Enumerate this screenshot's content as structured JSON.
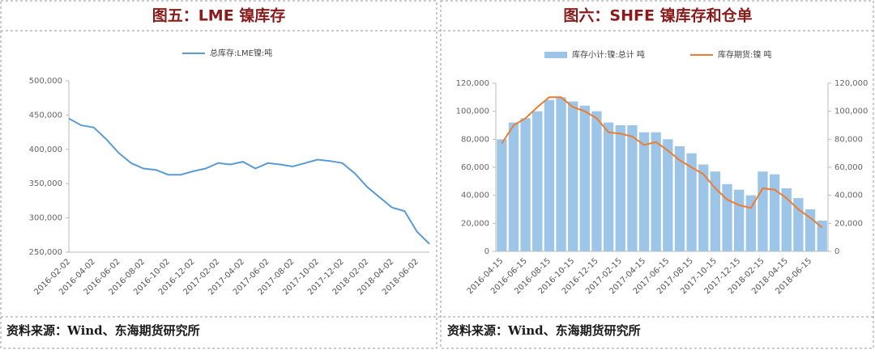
{
  "chart_data": [
    {
      "type": "line",
      "title": "图五：LME 镍库存",
      "source": "资料来源：Wind、东海期货研究所",
      "categories": [
        "2016-02-02",
        null,
        "2016-04-02",
        null,
        "2016-06-02",
        null,
        "2016-08-02",
        null,
        "2016-10-02",
        null,
        "2016-12-02",
        null,
        "2017-02-02",
        null,
        "2017-04-02",
        null,
        "2017-06-02",
        null,
        "2017-08-02",
        null,
        "2017-10-02",
        null,
        "2017-12-02",
        null,
        "2018-02-02",
        null,
        "2018-04-02",
        null,
        "2018-06-02",
        null
      ],
      "series": [
        {
          "name": "总库存:LME镍:吨",
          "color": "#5b9bd5",
          "values": [
            445000,
            435000,
            432000,
            415000,
            395000,
            380000,
            372000,
            370000,
            363000,
            363000,
            368000,
            372000,
            380000,
            378000,
            382000,
            372000,
            380000,
            378000,
            375000,
            380000,
            385000,
            383000,
            380000,
            365000,
            345000,
            330000,
            315000,
            310000,
            280000,
            262000
          ]
        }
      ],
      "ylim": [
        250000,
        500000
      ],
      "yticks": [
        {
          "value": 250000,
          "label": "250,000"
        },
        {
          "value": 300000,
          "label": "300,000"
        },
        {
          "value": 350000,
          "label": "350,000"
        },
        {
          "value": 400000,
          "label": "400,000"
        },
        {
          "value": 450000,
          "label": "450,000"
        },
        {
          "value": 500000,
          "label": "500,000"
        }
      ],
      "grid": false,
      "legend": "top"
    },
    {
      "type": "bar",
      "title": "图六：SHFE 镍库存和仓单",
      "source": "资料来源：Wind、东海期货研究所",
      "categories": [
        "2016-04-15",
        null,
        "2016-06-15",
        null,
        "2016-08-15",
        null,
        "2016-10-15",
        null,
        "2016-12-15",
        null,
        "2017-02-15",
        null,
        "2017-04-15",
        null,
        "2017-06-15",
        null,
        "2017-08-15",
        null,
        "2017-10-15",
        null,
        "2017-12-15",
        null,
        "2018-02-15",
        null,
        "2018-04-15",
        null,
        "2018-06-15",
        null
      ],
      "series": [
        {
          "name": "库存小计:镍:总计 吨",
          "color": "#9cc5e8",
          "mark": "bar",
          "values": [
            80000,
            92000,
            95000,
            100000,
            108000,
            110000,
            107000,
            104000,
            100000,
            92000,
            90000,
            90000,
            85000,
            85000,
            80000,
            75000,
            70000,
            62000,
            57000,
            48000,
            44000,
            40000,
            57000,
            55000,
            45000,
            38000,
            30000,
            22000
          ]
        },
        {
          "name": "库存期货:镍 吨",
          "color": "#ed7d31",
          "mark": "line",
          "axis": "y2",
          "values": [
            77000,
            90000,
            95000,
            103000,
            110000,
            110000,
            103000,
            100000,
            95000,
            85000,
            84000,
            82000,
            76000,
            78000,
            72000,
            65000,
            60000,
            55000,
            45000,
            37000,
            33000,
            31000,
            45000,
            44000,
            38000,
            30000,
            24000,
            17000
          ]
        }
      ],
      "ylim": [
        0,
        120000
      ],
      "yticks": [
        0,
        {
          "value": 20000,
          "label": "20,000"
        },
        {
          "value": 40000,
          "label": "40,000"
        },
        {
          "value": 60000,
          "label": "60,000"
        },
        {
          "value": 80000,
          "label": "80,000"
        },
        {
          "value": 100000,
          "label": "100,000"
        },
        {
          "value": 120000,
          "label": "120,000"
        }
      ],
      "y2lim": [
        0,
        120000
      ],
      "y2ticks": [
        0,
        {
          "value": 20000,
          "label": "20,000"
        },
        {
          "value": 40000,
          "label": "40,000"
        },
        {
          "value": 60000,
          "label": "60,000"
        },
        {
          "value": 80000,
          "label": "80,000"
        },
        {
          "value": 100000,
          "label": "100,000"
        },
        {
          "value": 120000,
          "label": "120,000"
        }
      ],
      "grid": false,
      "legend": "top"
    }
  ]
}
